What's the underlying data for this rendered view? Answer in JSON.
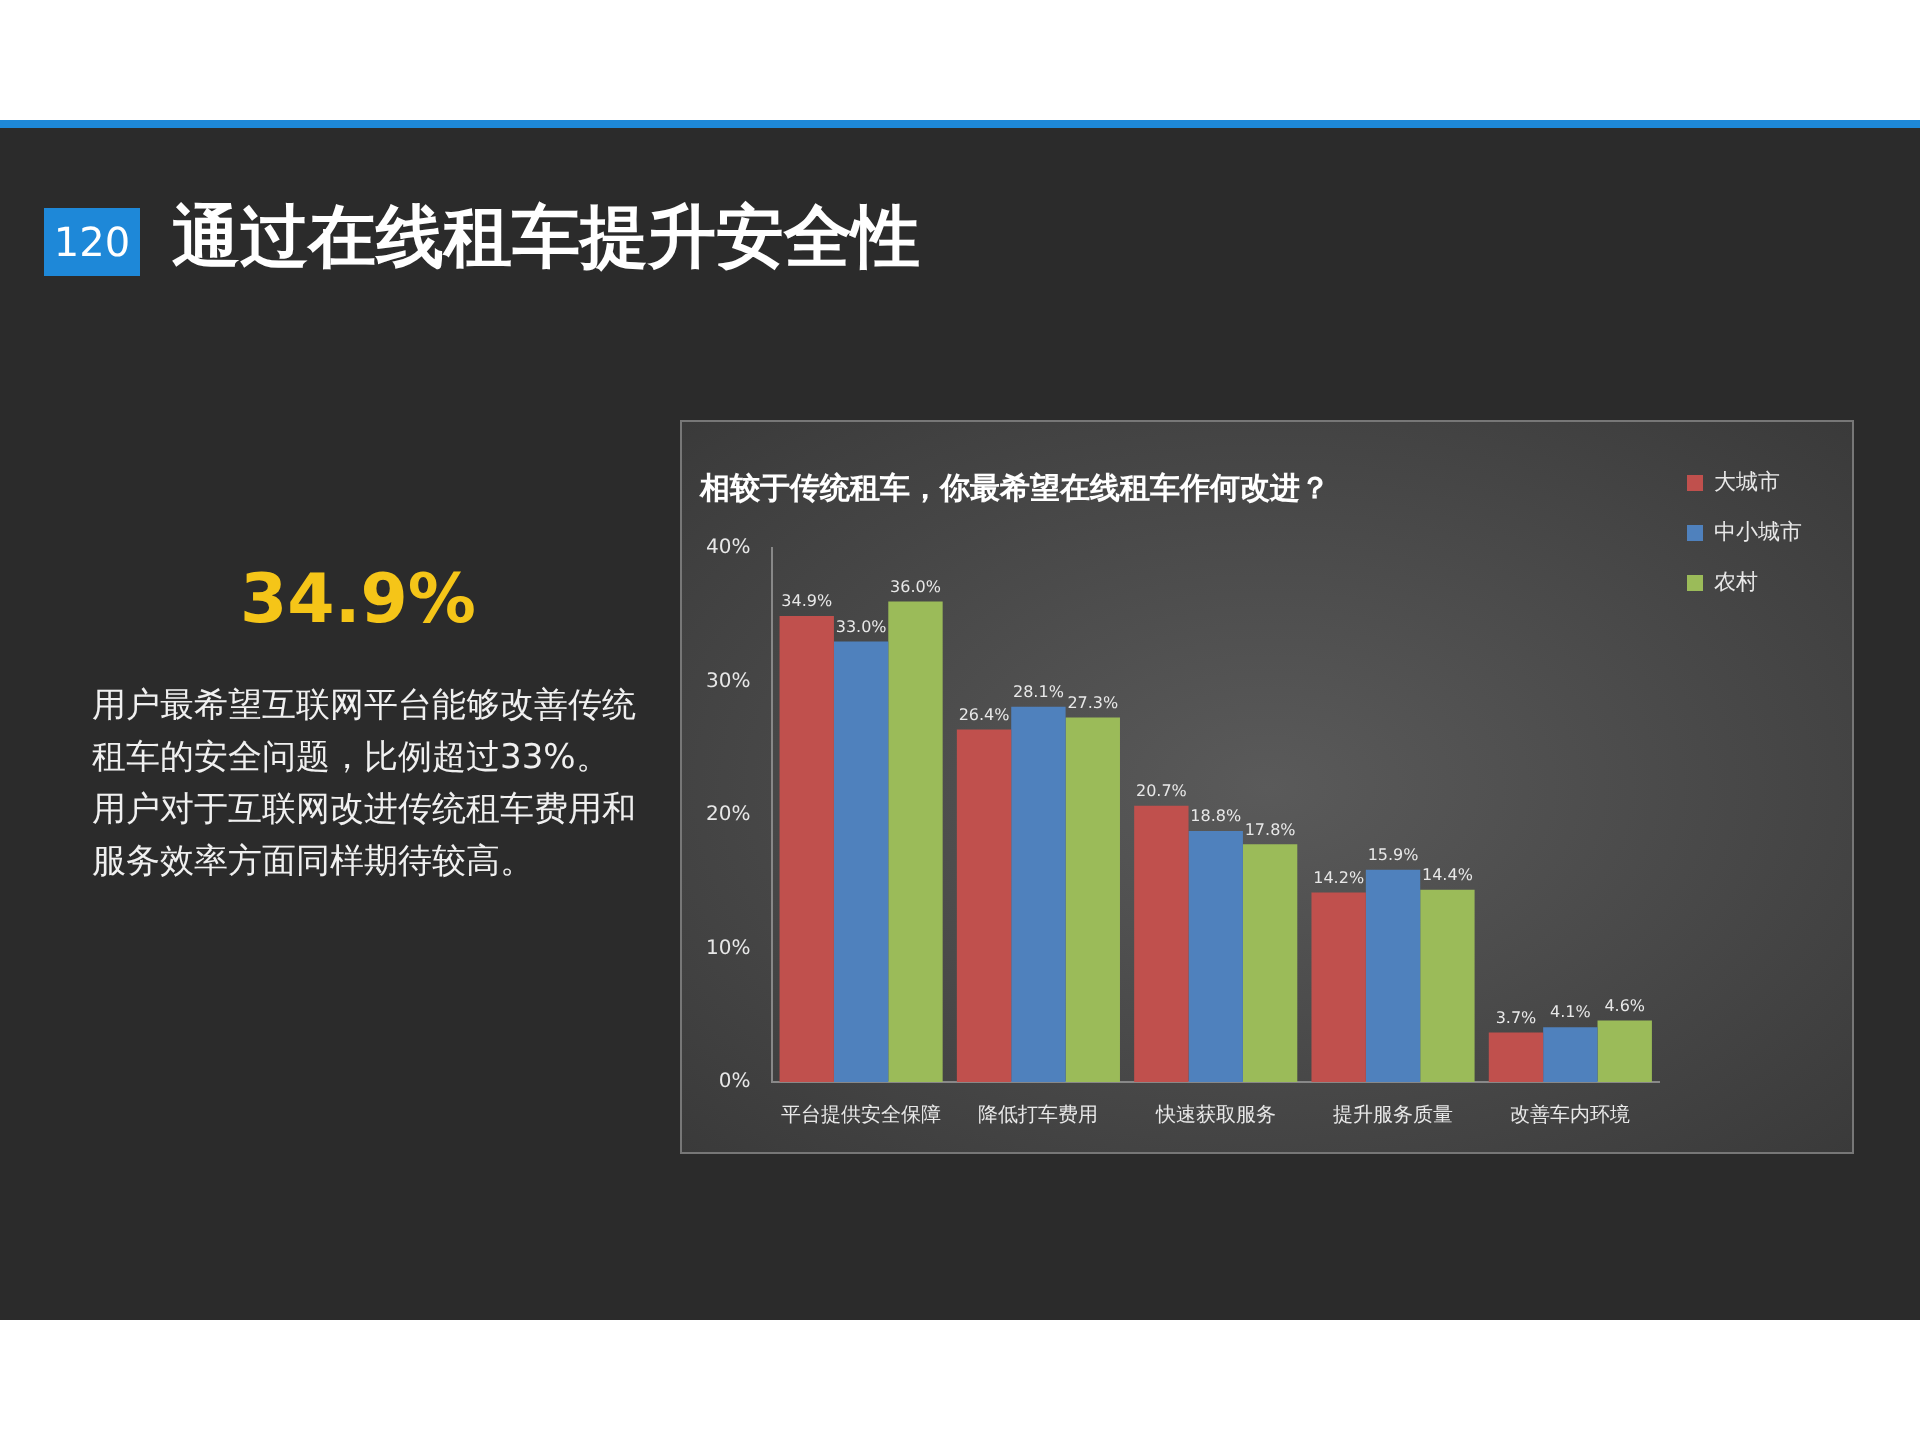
{
  "chart_data": {
    "type": "bar",
    "title": "相较于传统租车，你最希望在线租车作何改进？",
    "categories": [
      "平台提供安全保障",
      "降低打车费用",
      "快速获取服务",
      "提升服务质量",
      "改善车内环境"
    ],
    "series": [
      {
        "name": "大城市",
        "color": "#c0504d",
        "values": [
          34.9,
          26.4,
          20.7,
          14.2,
          3.7
        ],
        "value_labels": [
          "34.9%",
          "26.4%",
          "20.7%",
          "14.2%",
          "3.7%"
        ]
      },
      {
        "name": "中小城市",
        "color": "#4f81bd",
        "values": [
          33.0,
          28.1,
          18.8,
          15.9,
          4.1
        ],
        "value_labels": [
          "33.0%",
          "28.1%",
          "18.8%",
          "15.9%",
          "4.1%"
        ]
      },
      {
        "name": "农村",
        "color": "#9bbb59",
        "values": [
          36.0,
          27.3,
          17.8,
          14.4,
          4.6
        ],
        "value_labels": [
          "36.0%",
          "27.3%",
          "17.8%",
          "14.4%",
          "4.6%"
        ]
      }
    ],
    "ylim": [
      0,
      40
    ],
    "yticks": [
      {
        "value": 0,
        "label": "0%"
      },
      {
        "value": 10,
        "label": "10%"
      },
      {
        "value": 20,
        "label": "20%"
      },
      {
        "value": 30,
        "label": "30%"
      },
      {
        "value": 40,
        "label": "40%"
      }
    ],
    "grid": false,
    "legend": "right",
    "annotations": [
      "120",
      "通过在线租车提升安全性",
      "34.9%",
      "用户最希望互联网平台能够改善传统租车的安全问题，比例超过33%。用户对于互联网改进传统租车费用和服务效率方面同样期待较高。"
    ]
  }
}
